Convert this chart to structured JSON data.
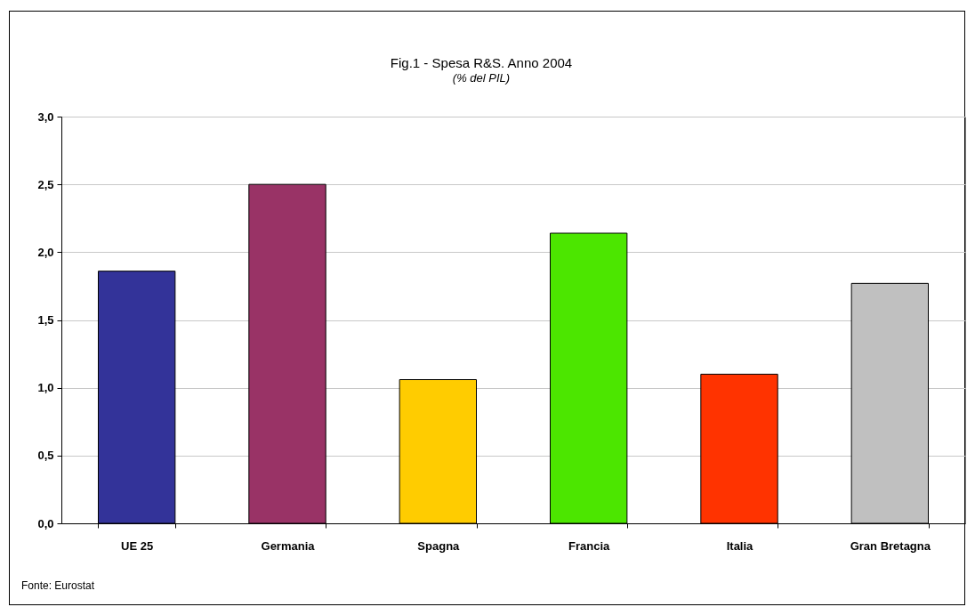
{
  "chart_data": {
    "type": "bar",
    "title": "Fig.1 - Spesa R&S.  Anno 2004",
    "subtitle": "(% del PIL)",
    "categories": [
      "UE 25",
      "Germania",
      "Spagna",
      "Francia",
      "Italia",
      "Gran Bretagna"
    ],
    "values": [
      1.86,
      2.5,
      1.06,
      2.14,
      1.1,
      1.77
    ],
    "colors": [
      "#333399",
      "#993366",
      "#ffcc00",
      "#4ce600",
      "#ff3300",
      "#c0c0c0"
    ],
    "ylim": [
      0,
      3
    ],
    "yticks": [
      {
        "value": 0,
        "label": "0,0"
      },
      {
        "value": 0.5,
        "label": "0,5"
      },
      {
        "value": 1,
        "label": "1,0"
      },
      {
        "value": 1.5,
        "label": "1,5"
      },
      {
        "value": 2,
        "label": "2,0"
      },
      {
        "value": 2.5,
        "label": "2,5"
      },
      {
        "value": 3,
        "label": "3,0"
      }
    ],
    "grid": "y",
    "annotations": [
      "Fonte: Eurostat"
    ]
  }
}
